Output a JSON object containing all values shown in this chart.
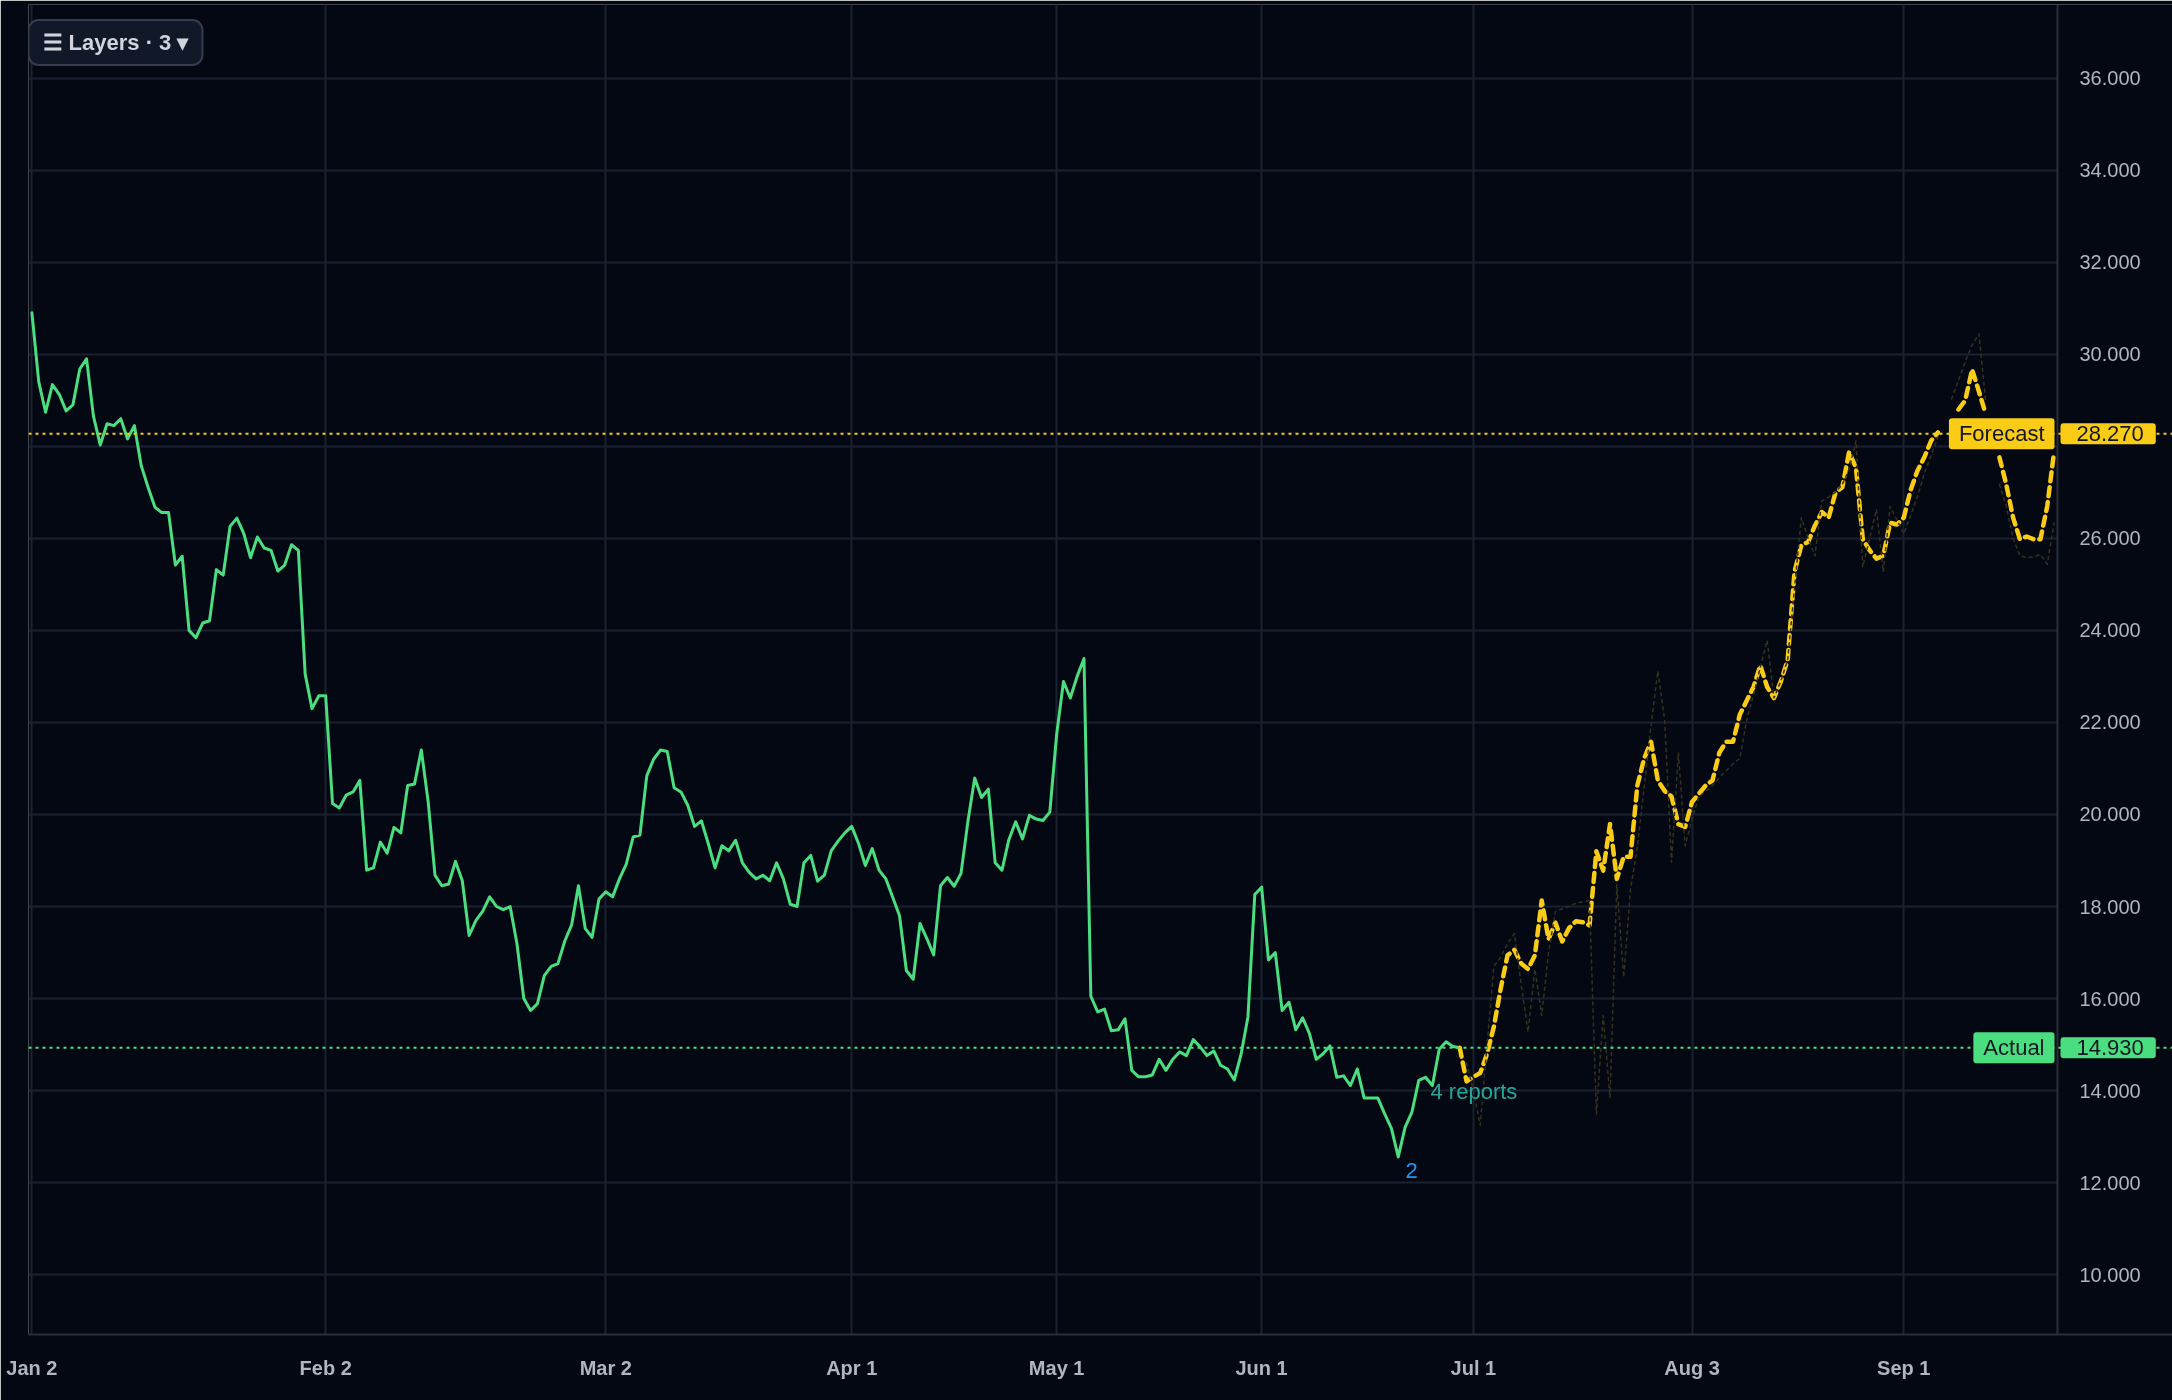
{
  "chart_data": {
    "type": "line",
    "categories": [
      "Jan 2",
      null,
      null,
      null,
      null,
      null,
      null,
      null,
      null,
      null,
      null,
      null,
      null,
      null,
      null,
      null,
      null,
      null,
      null,
      null,
      null,
      null,
      null,
      null,
      null,
      null,
      null,
      null,
      null,
      null,
      null,
      null,
      null,
      null,
      null,
      null,
      null,
      null,
      null,
      null,
      null,
      null,
      null,
      "Feb 2",
      null,
      null,
      null,
      null,
      null,
      null,
      null,
      null,
      null,
      null,
      null,
      null,
      null,
      null,
      null,
      null,
      null,
      null,
      null,
      null,
      null,
      null,
      null,
      null,
      null,
      null,
      null,
      null,
      null,
      null,
      null,
      null,
      null,
      null,
      null,
      null,
      null,
      null,
      null,
      null,
      "Mar 2",
      null,
      null,
      null,
      null,
      null,
      null,
      null,
      null,
      null,
      null,
      null,
      null,
      null,
      null,
      null,
      null,
      null,
      null,
      null,
      null,
      null,
      null,
      null,
      null,
      null,
      null,
      null,
      null,
      null,
      null,
      null,
      null,
      null,
      null,
      null,
      "Apr 1",
      null,
      null,
      null,
      null,
      null,
      null,
      null,
      null,
      null,
      null,
      null,
      null,
      null,
      null,
      null,
      null,
      null,
      null,
      null,
      null,
      null,
      null,
      null,
      null,
      null,
      null,
      null,
      null,
      null,
      "May 1",
      null,
      null,
      null,
      null,
      null,
      null,
      null,
      null,
      null,
      null,
      null,
      null,
      null,
      null,
      null,
      null,
      null,
      null,
      null,
      null,
      null,
      null,
      null,
      null,
      null,
      null,
      null,
      null,
      null,
      "Jun 1",
      null,
      null,
      null,
      null,
      null,
      null,
      null,
      null,
      null,
      null,
      null,
      null,
      null,
      null,
      null,
      null,
      null,
      null,
      null,
      null,
      null,
      null,
      null,
      null,
      null,
      null,
      null,
      null,
      null,
      null,
      "Jul 1",
      null,
      null,
      null,
      null,
      null,
      null,
      null,
      null,
      null,
      null,
      null,
      null,
      null,
      null,
      null,
      null,
      null,
      null,
      null,
      null,
      null,
      null,
      null,
      null,
      null,
      null,
      null,
      null,
      null,
      null,
      null,
      "Aug 3",
      null,
      null,
      null,
      null,
      null,
      null,
      null,
      null,
      null,
      null,
      null,
      null,
      null,
      null,
      null,
      null,
      null,
      null,
      null,
      null,
      null,
      null,
      null,
      null,
      null,
      null,
      null,
      null,
      null,
      null,
      "Sep 1",
      null,
      null,
      null,
      null,
      null,
      null,
      null,
      null,
      null,
      null,
      null,
      null,
      null,
      null,
      null,
      null,
      null,
      null,
      null,
      null,
      null,
      null
    ],
    "ylim": [
      8.7,
      37.6
    ],
    "yticks": [
      {
        "value": 10,
        "label": "10.000"
      },
      {
        "value": 12,
        "label": "12.000"
      },
      {
        "value": 14,
        "label": "14.000"
      },
      {
        "value": 16,
        "label": "16.000"
      },
      {
        "value": 18,
        "label": "18.000"
      },
      {
        "value": 20,
        "label": "20.000"
      },
      {
        "value": 22,
        "label": "22.000"
      },
      {
        "value": 24,
        "label": "24.000"
      },
      {
        "value": 26,
        "label": "26.000"
      },
      {
        "value": 28,
        "label": null
      },
      {
        "value": 30,
        "label": "30.000"
      },
      {
        "value": 32,
        "label": "32.000"
      },
      {
        "value": 34,
        "label": "34.000"
      },
      {
        "value": 36,
        "label": "36.000"
      }
    ],
    "grid": true,
    "series": [
      {
        "color": "#4ade80",
        "line_style": "solid",
        "values": [
          30.9,
          29.4,
          28.74,
          29.34,
          29.13,
          28.77,
          28.9,
          29.68,
          29.9,
          28.66,
          28.03,
          28.49,
          28.45,
          28.6,
          28.16,
          28.45,
          27.58,
          27.11,
          26.68,
          26.56,
          26.56,
          25.42,
          25.61,
          24.0,
          23.84,
          24.16,
          24.21,
          25.32,
          25.2,
          26.26,
          26.44,
          26.11,
          25.58,
          26.03,
          25.79,
          25.74,
          25.29,
          25.42,
          25.86,
          25.74,
          23.05,
          22.3,
          22.58,
          22.58,
          20.24,
          20.14,
          20.42,
          20.49,
          20.74,
          18.79,
          18.84,
          19.4,
          19.16,
          19.72,
          19.6,
          20.63,
          20.66,
          21.4,
          20.28,
          18.68,
          18.45,
          18.49,
          18.98,
          18.56,
          17.37,
          17.7,
          17.9,
          18.21,
          18.0,
          17.93,
          18.0,
          17.19,
          16.0,
          15.74,
          15.89,
          16.5,
          16.7,
          16.76,
          17.25,
          17.6,
          18.45,
          17.52,
          17.33,
          18.16,
          18.32,
          18.21,
          18.6,
          18.92,
          19.51,
          19.55,
          20.84,
          21.2,
          21.4,
          21.37,
          20.58,
          20.49,
          20.2,
          19.74,
          19.86,
          19.37,
          18.84,
          19.32,
          19.21,
          19.44,
          18.95,
          18.74,
          18.6,
          18.68,
          18.56,
          18.95,
          18.6,
          18.05,
          18.0,
          18.95,
          19.11,
          18.55,
          18.68,
          19.21,
          19.42,
          19.6,
          19.74,
          19.37,
          18.89,
          19.26,
          18.79,
          18.6,
          18.2,
          17.8,
          16.61,
          16.42,
          17.63,
          17.3,
          16.95,
          18.45,
          18.63,
          18.44,
          18.72,
          19.84,
          20.79,
          20.37,
          20.55,
          18.95,
          18.79,
          19.45,
          19.84,
          19.47,
          19.98,
          19.9,
          19.87,
          20.05,
          21.74,
          22.89,
          22.53,
          23.0,
          23.39,
          16.05,
          15.71,
          15.77,
          15.3,
          15.32,
          15.56,
          14.44,
          14.3,
          14.3,
          14.34,
          14.68,
          14.44,
          14.68,
          14.84,
          14.76,
          15.11,
          14.95,
          14.76,
          14.86,
          14.55,
          14.47,
          14.23,
          14.79,
          15.6,
          18.26,
          18.42,
          16.84,
          17.0,
          15.74,
          15.92,
          15.32,
          15.58,
          15.24,
          14.68,
          14.8,
          14.97,
          14.29,
          14.32,
          14.11,
          14.47,
          13.84,
          13.84,
          13.84,
          13.5,
          13.18,
          12.56,
          13.2,
          13.53,
          14.22,
          14.29,
          14.11,
          14.9,
          15.06,
          14.96,
          14.93,
          null,
          null,
          null,
          null,
          null,
          null,
          null,
          null,
          null,
          null,
          null,
          null,
          null,
          null,
          null,
          null,
          null,
          null,
          null,
          null,
          null,
          null,
          null,
          null,
          null,
          null,
          null,
          null,
          null,
          null,
          null,
          null,
          null,
          null,
          null,
          null,
          null,
          null,
          null,
          null,
          null,
          null,
          null,
          null,
          null,
          null,
          null,
          null,
          null,
          null,
          null,
          null,
          null,
          null,
          null,
          null,
          null,
          null,
          null,
          null,
          null,
          null,
          null,
          null,
          null,
          null,
          null,
          null,
          null,
          null,
          null,
          null,
          null,
          null,
          null,
          null,
          null,
          null,
          null,
          null,
          null,
          null,
          null,
          null,
          null,
          null,
          null
        ]
      },
      {
        "color": "#facc15",
        "line_style": "dashed",
        "values": [
          null,
          null,
          null,
          null,
          null,
          null,
          null,
          null,
          null,
          null,
          null,
          null,
          null,
          null,
          null,
          null,
          null,
          null,
          null,
          null,
          null,
          null,
          null,
          null,
          null,
          null,
          null,
          null,
          null,
          null,
          null,
          null,
          null,
          null,
          null,
          null,
          null,
          null,
          null,
          null,
          null,
          null,
          null,
          null,
          null,
          null,
          null,
          null,
          null,
          null,
          null,
          null,
          null,
          null,
          null,
          null,
          null,
          null,
          null,
          null,
          null,
          null,
          null,
          null,
          null,
          null,
          null,
          null,
          null,
          null,
          null,
          null,
          null,
          null,
          null,
          null,
          null,
          null,
          null,
          null,
          null,
          null,
          null,
          null,
          null,
          null,
          null,
          null,
          null,
          null,
          null,
          null,
          null,
          null,
          null,
          null,
          null,
          null,
          null,
          null,
          null,
          null,
          null,
          null,
          null,
          null,
          null,
          null,
          null,
          null,
          null,
          null,
          null,
          null,
          null,
          null,
          null,
          null,
          null,
          null,
          null,
          null,
          null,
          null,
          null,
          null,
          null,
          null,
          null,
          null,
          null,
          null,
          null,
          null,
          null,
          null,
          null,
          null,
          null,
          null,
          null,
          null,
          null,
          null,
          null,
          null,
          null,
          null,
          null,
          null,
          null,
          null,
          null,
          null,
          null,
          null,
          null,
          null,
          null,
          null,
          null,
          null,
          null,
          null,
          null,
          null,
          null,
          null,
          null,
          null,
          null,
          null,
          null,
          null,
          null,
          null,
          null,
          null,
          null,
          null,
          null,
          null,
          null,
          null,
          null,
          null,
          null,
          null,
          null,
          null,
          null,
          null,
          null,
          null,
          null,
          null,
          null,
          null,
          null,
          null,
          null,
          null,
          null,
          null,
          null,
          null,
          null,
          null,
          null,
          14.93,
          14.2,
          14.3,
          14.38,
          14.8,
          15.39,
          16.22,
          16.94,
          17.06,
          16.76,
          16.64,
          16.94,
          18.13,
          17.29,
          17.65,
          17.24,
          17.53,
          17.68,
          17.66,
          17.59,
          19.2,
          18.78,
          19.79,
          18.6,
          19.08,
          19.08,
          20.63,
          21.22,
          21.58,
          20.74,
          20.51,
          20.39,
          19.79,
          19.73,
          20.27,
          20.45,
          20.63,
          20.74,
          21.34,
          21.58,
          21.58,
          22.17,
          22.47,
          22.77,
          23.24,
          22.77,
          22.53,
          22.89,
          23.36,
          25.27,
          25.85,
          25.92,
          26.28,
          26.57,
          26.45,
          26.99,
          27.11,
          27.88,
          27.53,
          25.98,
          25.74,
          25.56,
          25.62,
          26.34,
          26.3,
          26.45,
          27.05,
          27.47,
          27.76,
          28.12,
          28.3,
          null,
          null,
          28.8,
          29.0,
          29.67,
          29.19,
          28.7,
          null,
          27.76,
          27.17,
          26.45,
          25.98,
          26.04,
          25.98,
          25.98,
          26.7,
          27.88
        ]
      },
      {
        "color": "#35321f",
        "line_style": "dotted",
        "values": [
          null,
          null,
          null,
          null,
          null,
          null,
          null,
          null,
          null,
          null,
          null,
          null,
          null,
          null,
          null,
          null,
          null,
          null,
          null,
          null,
          null,
          null,
          null,
          null,
          null,
          null,
          null,
          null,
          null,
          null,
          null,
          null,
          null,
          null,
          null,
          null,
          null,
          null,
          null,
          null,
          null,
          null,
          null,
          null,
          null,
          null,
          null,
          null,
          null,
          null,
          null,
          null,
          null,
          null,
          null,
          null,
          null,
          null,
          null,
          null,
          null,
          null,
          null,
          null,
          null,
          null,
          null,
          null,
          null,
          null,
          null,
          null,
          null,
          null,
          null,
          null,
          null,
          null,
          null,
          null,
          null,
          null,
          null,
          null,
          null,
          null,
          null,
          null,
          null,
          null,
          null,
          null,
          null,
          null,
          null,
          null,
          null,
          null,
          null,
          null,
          null,
          null,
          null,
          null,
          null,
          null,
          null,
          null,
          null,
          null,
          null,
          null,
          null,
          null,
          null,
          null,
          null,
          null,
          null,
          null,
          null,
          null,
          null,
          null,
          null,
          null,
          null,
          null,
          null,
          null,
          null,
          null,
          null,
          null,
          null,
          null,
          null,
          null,
          null,
          null,
          null,
          null,
          null,
          null,
          null,
          null,
          null,
          null,
          null,
          null,
          null,
          null,
          null,
          null,
          null,
          null,
          null,
          null,
          null,
          null,
          null,
          null,
          null,
          null,
          null,
          null,
          null,
          null,
          null,
          null,
          null,
          null,
          null,
          null,
          null,
          null,
          null,
          null,
          null,
          null,
          null,
          null,
          null,
          null,
          null,
          null,
          null,
          null,
          null,
          null,
          null,
          null,
          null,
          null,
          null,
          null,
          null,
          null,
          null,
          null,
          null,
          null,
          null,
          null,
          null,
          null,
          null,
          null,
          null,
          null,
          14.6,
          14.0,
          13.25,
          15.0,
          16.7,
          16.9,
          17.2,
          17.41,
          16.3,
          15.27,
          16.64,
          15.63,
          17.0,
          17.89,
          17.95,
          18.0,
          18.07,
          18.1,
          18.13,
          13.49,
          15.63,
          13.84,
          18.48,
          16.46,
          18.37,
          19.3,
          20.6,
          21.93,
          23.12,
          22.05,
          18.96,
          21.34,
          19.32,
          19.9,
          20.39,
          20.5,
          20.63,
          20.8,
          20.95,
          21.1,
          21.22,
          22.05,
          22.6,
          23.2,
          23.78,
          22.53,
          22.9,
          23.36,
          24.9,
          26.45,
          26.0,
          25.62,
          26.81,
          26.9,
          27.0,
          27.17,
          27.5,
          28.12,
          25.38,
          26.0,
          26.63,
          25.27,
          26.69,
          26.4,
          26.1,
          26.5,
          26.9,
          27.41,
          27.8,
          28.2,
          null,
          29.03,
          29.43,
          29.84,
          30.2,
          30.44,
          28.95,
          null,
          27.17,
          26.7,
          26.0,
          25.62,
          25.58,
          25.6,
          25.65,
          25.44,
          26.34
        ]
      }
    ],
    "ref_lines": [
      {
        "axis": "y",
        "value": 28.27,
        "label": "Forecast",
        "color": "#facc15",
        "line_style": "dotted"
      },
      {
        "axis": "y",
        "value": 14.93,
        "label": "Actual",
        "color": "#4ade80",
        "line_style": "dotted"
      }
    ],
    "annotations": [
      "☰ Layers · 3 ▾",
      "2",
      "4 reports",
      {
        "text": "28.270",
        "y": 28.27
      },
      {
        "text": "14.930",
        "y": 14.93
      }
    ]
  }
}
